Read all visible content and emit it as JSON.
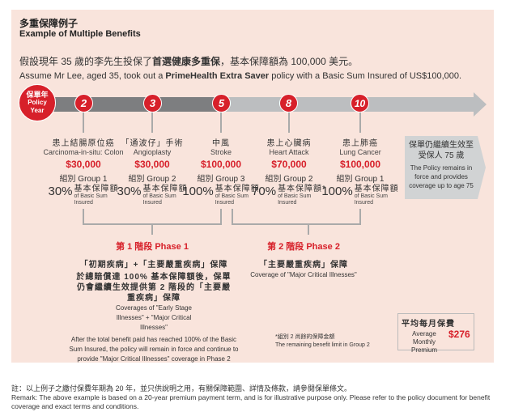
{
  "title_cn": "多重保障例子",
  "title_en": "Example of Multiple Benefits",
  "intro_cn_1": "假設現年 35 歲的李先生投保了",
  "intro_cn_bold": "首選健康多重保",
  "intro_cn_2": "，基本保障額為 100,000 美元。",
  "intro_en_1": "Assume Mr Lee, aged 35, took out a ",
  "intro_en_bold": "PrimeHealth Extra Saver",
  "intro_en_2": " policy with a Basic Sum Insured of US$100,000.",
  "timeline": {
    "start_cn": "保單年",
    "start_en": "Policy Year",
    "years": [
      "2",
      "3",
      "5",
      "8",
      "10"
    ]
  },
  "events": [
    {
      "cn": "患上結腸原位癌",
      "en": "Carcinoma-in-situ: Colon",
      "amount": "$30,000",
      "group": "組別 Group 1",
      "pct": "30%",
      "basic_cn": "基本保障額",
      "basic_en": "of Basic Sum Insured"
    },
    {
      "cn": "「通波仔」手術",
      "en": "Angioplasty",
      "amount": "$30,000",
      "group": "組別 Group 2",
      "pct": "30%",
      "basic_cn": "基本保障額",
      "basic_en": "of Basic Sum Insured"
    },
    {
      "cn": "中風",
      "en": "Stroke",
      "amount": "$100,000",
      "group": "組別 Group 3",
      "pct": "100%",
      "basic_cn": "基本保障額",
      "basic_en": "of Basic Sum Insured"
    },
    {
      "cn": "患上心臟病",
      "en": "Heart Attack",
      "amount": "$70,000",
      "group": "組別 Group 2",
      "pct": "70%",
      "basic_cn": "基本保障額*",
      "basic_en": "of Basic Sum Insured"
    },
    {
      "cn": "患上肺癌",
      "en": "Lung Cancer",
      "amount": "$100,000",
      "group": "組別 Group 1",
      "pct": "100%",
      "basic_cn": "基本保障額",
      "basic_en": "of Basic Sum Insured"
    }
  ],
  "end_box": {
    "cn": "保單仍繼續生效至受保人 75 歲",
    "en": "The Policy remains in force and provides coverage up to age 75"
  },
  "phase1": {
    "label": "第 1 階段  Phase 1",
    "cn1": "「初期疾病」+「主要嚴重疾病」保障",
    "cn2": "於總賠償達 100% 基本保障額後，保單仍會繼續生效提供第 2 階段的「主要嚴重疾病」保障",
    "en1": "Coverages of \"Early Stage Illnesses\" + \"Major Critical Illnesses\"",
    "en2": "After the total benefit paid has reached 100% of the Basic Sum Insured, the policy will remain in force and continue to provide \"Major Critical Illnesses\" coverage in Phase 2"
  },
  "phase2": {
    "label": "第 2 階段  Phase 2",
    "cn1": "「主要嚴重疾病」保障",
    "en1": "Coverage of \"Major Critical Illnesses\""
  },
  "footnote": {
    "cn": "*組別 2 尚餘的保障金額",
    "en": "The remaining benefit limit in Group 2"
  },
  "premium": {
    "cn": "平均每月保費",
    "en": "Average Monthly Premium",
    "amount": "$276"
  },
  "remark_cn": "註：以上例子之繳付保費年期為 20 年，並只供說明之用，有關保障範圍、詳情及條款，請參閱保單條文。",
  "remark_en": "Remark: The above example is based on a 20-year premium payment term, and is for illustrative purpose only. Please refer to the policy document for benefit coverage and exact terms and conditions.",
  "colors": {
    "accent": "#d7202a",
    "panel": "#f9e4dc",
    "bar_dark": "#7d7e80",
    "bar_light": "#bcbec0"
  }
}
